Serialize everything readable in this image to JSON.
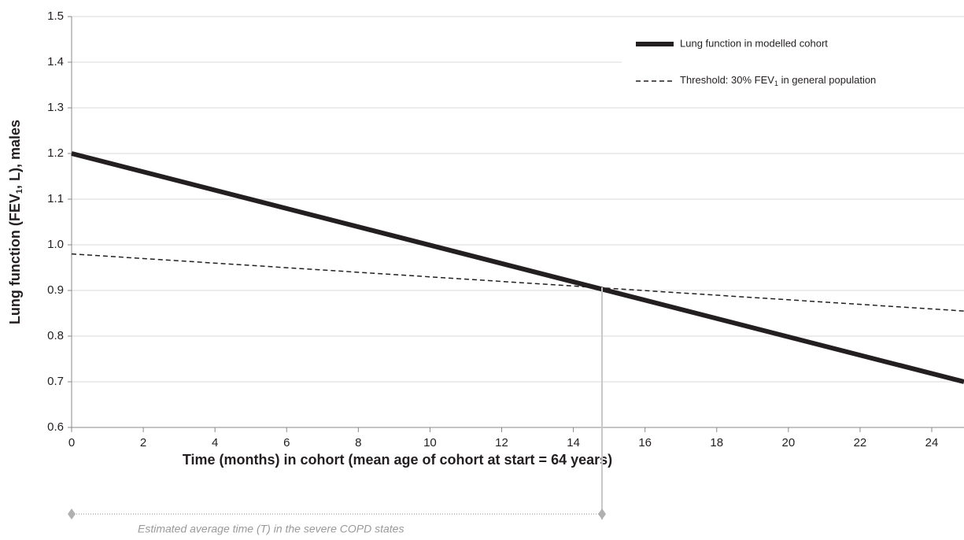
{
  "chart_data": {
    "type": "line",
    "ylabel_parts": [
      "Lung function (FEV",
      "1",
      ", L), males"
    ],
    "xlabel": "Time (months) in cohort (mean age of cohort at start = 64 years)",
    "x": [
      0,
      24.9
    ],
    "series": [
      {
        "name": "Lung function in modelled cohort",
        "color": "#231f20",
        "style": "solid",
        "values": [
          1.2,
          0.7
        ]
      },
      {
        "name_parts": [
          "Threshold: 30% FEV",
          "1",
          " in general population"
        ],
        "color": "#231f20",
        "style": "dashed",
        "values": [
          0.98,
          0.855
        ]
      }
    ],
    "xlim": [
      0,
      24.9
    ],
    "xticks": [
      0,
      2,
      4,
      6,
      8,
      10,
      12,
      14,
      16,
      18,
      20,
      22,
      24
    ],
    "ylim": [
      0.6,
      1.5
    ],
    "yticks": [
      {
        "value": 0.6,
        "label": "0.6"
      },
      {
        "value": 0.7,
        "label": "0.7"
      },
      {
        "value": 0.8,
        "label": "0.8"
      },
      {
        "value": 0.9,
        "label": "0.9"
      },
      {
        "value": 1.0,
        "label": "1.0"
      },
      {
        "value": 1.1,
        "label": "1.1"
      },
      {
        "value": 1.2,
        "label": "1.2"
      },
      {
        "value": 1.3,
        "label": "1.3"
      },
      {
        "value": 1.4,
        "label": "1.4"
      },
      {
        "value": 1.5,
        "label": "1.5"
      }
    ],
    "grid": true,
    "legend": "top-right",
    "annotation": {
      "text": "Estimated average time (T) in the severe COPD states",
      "x": 14.8
    }
  }
}
